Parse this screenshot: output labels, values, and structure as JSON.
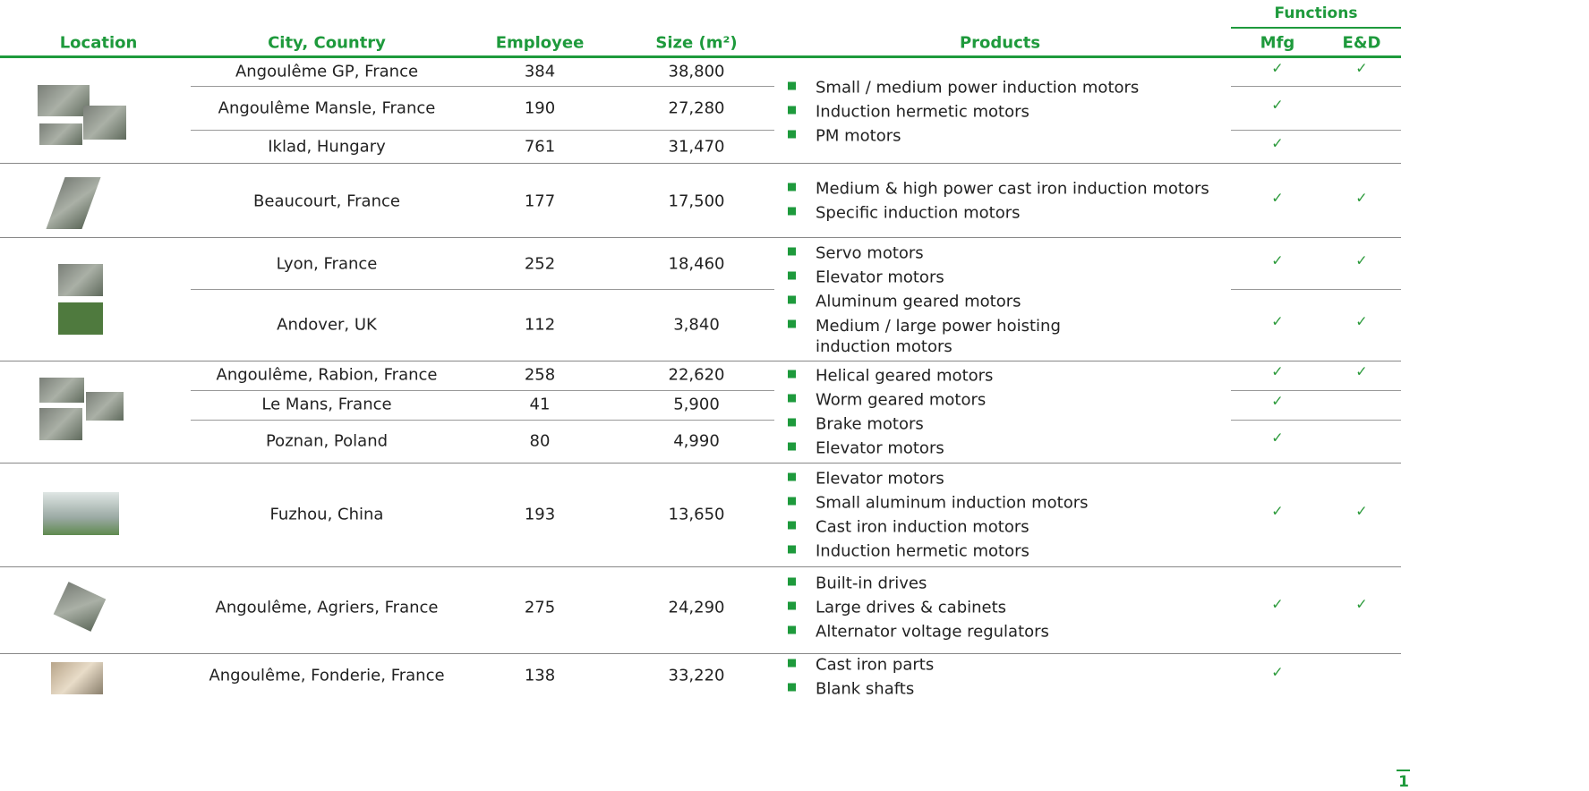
{
  "header": {
    "functions": "Functions",
    "columns": [
      "Location",
      "City, Country",
      "Employee",
      "Size (m²)",
      "Products",
      "Mfg",
      "E&D"
    ]
  },
  "groups": [
    {
      "sites": [
        {
          "city": "Angoulême GP, France",
          "employee": "384",
          "size": "38,800",
          "mfg": "✓",
          "ed": "✓"
        },
        {
          "city": "Angoulême  Mansle,  France",
          "employee": "190",
          "size": "27,280",
          "mfg": "✓",
          "ed": null
        },
        {
          "city": "Iklad, Hungary",
          "employee": "761",
          "size": "31,470",
          "mfg": "✓",
          "ed": null
        }
      ],
      "products": [
        "Small / medium power induction motors",
        "Induction hermetic motors",
        "PM motors"
      ]
    },
    {
      "sites": [
        {
          "city": "Beaucourt, France",
          "employee": "177",
          "size": "17,500",
          "mfg": "✓",
          "ed": "✓"
        }
      ],
      "products": [
        "Medium & high power cast iron induction motors",
        "Specific induction motors"
      ]
    },
    {
      "sites": [
        {
          "city": "Lyon, France",
          "employee": "252",
          "size": "18,460",
          "mfg": "✓",
          "ed": "✓"
        },
        {
          "city": "Andover, UK",
          "employee": "112",
          "size": "3,840",
          "mfg": "✓",
          "ed": "✓"
        }
      ],
      "products": [
        "Servo motors",
        "Elevator motors",
        "Aluminum geared motors",
        "Medium / large power hoisting induction motors"
      ]
    },
    {
      "sites": [
        {
          "city": "Angoulême, Rabion, France",
          "employee": "258",
          "size": "22,620",
          "mfg": "✓",
          "ed": "✓"
        },
        {
          "city": "Le Mans, France",
          "employee": "41",
          "size": "5,900",
          "mfg": "✓",
          "ed": null
        },
        {
          "city": "Poznan, Poland",
          "employee": "80",
          "size": "4,990",
          "mfg": "✓",
          "ed": null
        }
      ],
      "products": [
        "Helical geared motors",
        "Worm geared motors",
        "Brake motors",
        "Elevator motors"
      ]
    },
    {
      "sites": [
        {
          "city": "Fuzhou, China",
          "employee": "193",
          "size": "13,650",
          "mfg": "✓",
          "ed": "✓"
        }
      ],
      "products": [
        "Elevator motors",
        "Small aluminum induction motors",
        "Cast iron induction motors",
        "Induction hermetic motors"
      ]
    },
    {
      "sites": [
        {
          "city": "Angoulême, Agriers, France",
          "employee": "275",
          "size": "24,290",
          "mfg": "✓",
          "ed": "✓"
        }
      ],
      "products": [
        "Built-in drives",
        "Large drives & cabinets",
        "Alternator voltage regulators"
      ]
    },
    {
      "sites": [
        {
          "city": "Angoulême, Fonderie, France",
          "employee": "138",
          "size": "33,220",
          "mfg": "✓",
          "ed": null
        }
      ],
      "products": [
        "Cast iron parts",
        "Blank shafts"
      ]
    }
  ],
  "page_number": "1"
}
